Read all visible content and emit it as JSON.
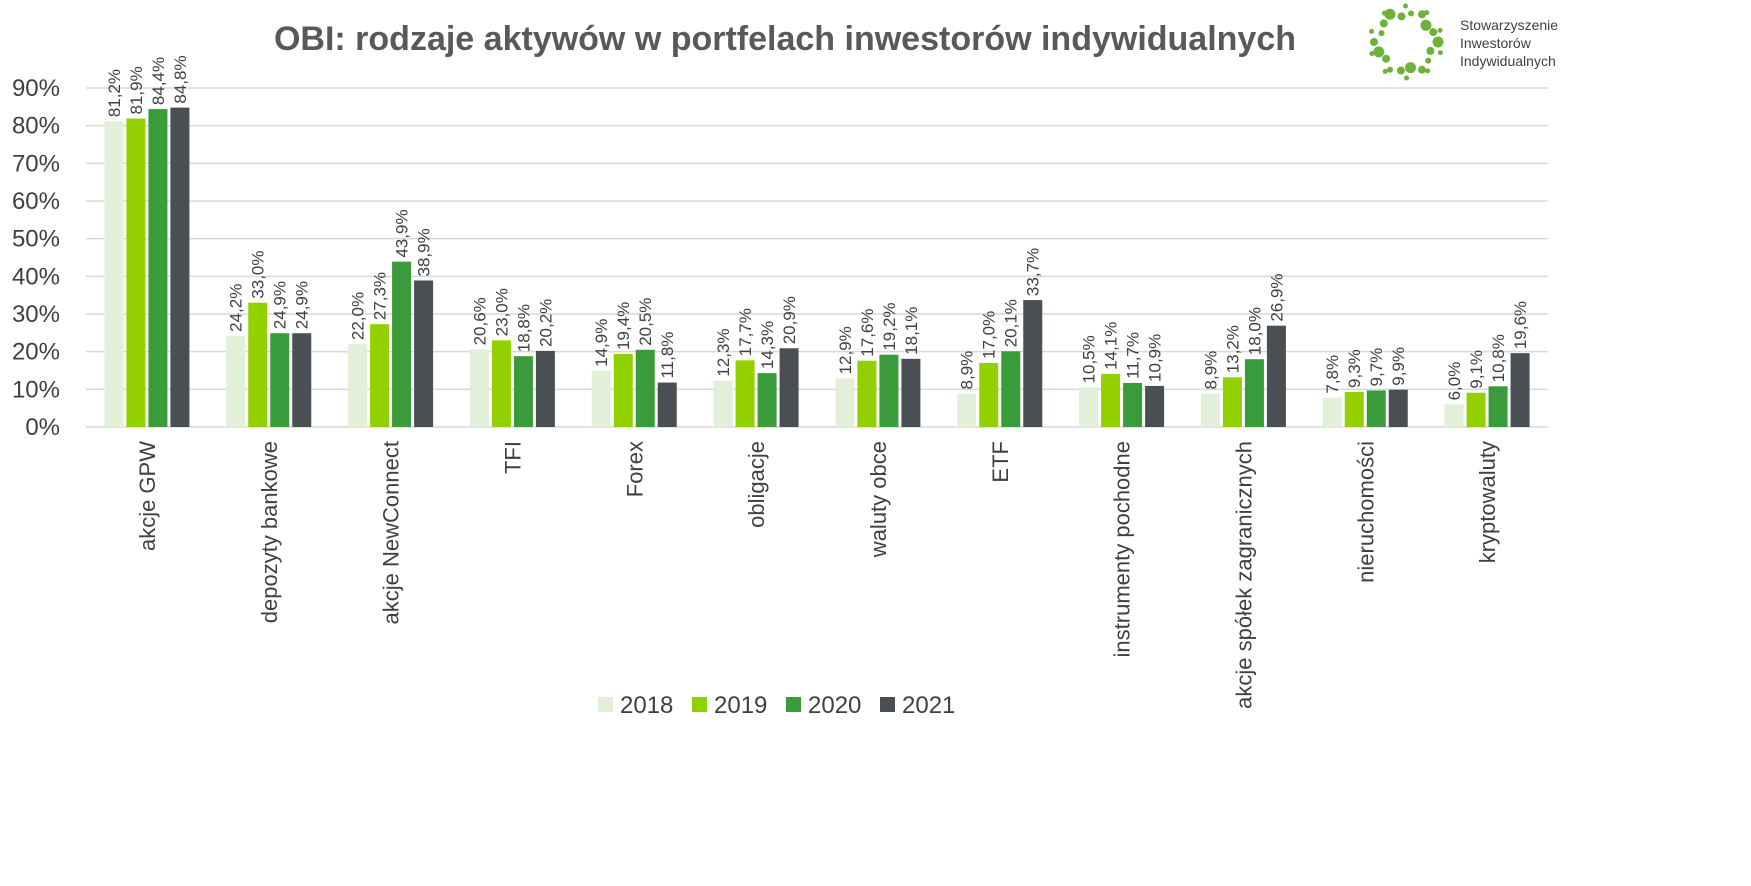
{
  "chart_data": {
    "type": "bar",
    "title": "OBI: rodzaje aktywów w portfelach inwestorów indywidualnych",
    "xlabel": "",
    "ylabel": "",
    "ylim": [
      0,
      90
    ],
    "yticks": [
      "0%",
      "10%",
      "20%",
      "30%",
      "40%",
      "50%",
      "60%",
      "70%",
      "80%",
      "90%"
    ],
    "grid": true,
    "legend_position": "bottom",
    "categories": [
      "akcje GPW",
      "depozyty bankowe",
      "akcje NewConnect",
      "TFI",
      "Forex",
      "obligacje",
      "waluty obce",
      "ETF",
      "instrumenty pochodne",
      "akcje spółek zagranicznych",
      "nieruchomości",
      "kryptowaluty"
    ],
    "series": [
      {
        "name": "2018",
        "color": "#e2efd9",
        "values": [
          81.2,
          24.2,
          22.0,
          20.6,
          14.9,
          12.3,
          12.9,
          8.9,
          10.5,
          8.9,
          7.8,
          6.0
        ],
        "labels": [
          "81,2%",
          "24,2%",
          "22,0%",
          "20,6%",
          "14,9%",
          "12,3%",
          "12,9%",
          "8,9%",
          "10,5%",
          "8,9%",
          "7,8%",
          "6,0%"
        ]
      },
      {
        "name": "2019",
        "color": "#92d000",
        "values": [
          81.9,
          33.0,
          27.3,
          23.0,
          19.4,
          17.7,
          17.6,
          17.0,
          14.1,
          13.2,
          9.3,
          9.1
        ],
        "labels": [
          "81,9%",
          "33,0%",
          "27,3%",
          "23,0%",
          "19,4%",
          "17,7%",
          "17,6%",
          "17,0%",
          "14,1%",
          "13,2%",
          "9,3%",
          "9,1%"
        ]
      },
      {
        "name": "2020",
        "color": "#3a9b3a",
        "values": [
          84.4,
          24.9,
          43.9,
          18.8,
          20.5,
          14.3,
          19.2,
          20.1,
          11.7,
          18.0,
          9.7,
          10.8
        ],
        "labels": [
          "84,4%",
          "24,9%",
          "43,9%",
          "18,8%",
          "20,5%",
          "14,3%",
          "19,2%",
          "20,1%",
          "11,7%",
          "18,0%",
          "9,7%",
          "10,8%"
        ]
      },
      {
        "name": "2021",
        "color": "#4a4f54",
        "values": [
          84.8,
          24.9,
          38.9,
          20.2,
          11.8,
          20.9,
          18.1,
          33.7,
          10.9,
          26.9,
          9.9,
          19.6
        ],
        "labels": [
          "84,8%",
          "24,9%",
          "38,9%",
          "20,2%",
          "11,8%",
          "20,9%",
          "18,1%",
          "33,7%",
          "10,9%",
          "26,9%",
          "9,9%",
          "19,6%"
        ]
      }
    ]
  },
  "logo": {
    "line1": "Stowarzyszenie",
    "line2": "Inwestorów",
    "line3": "Indywidualnych",
    "color": "#6fb23a"
  }
}
